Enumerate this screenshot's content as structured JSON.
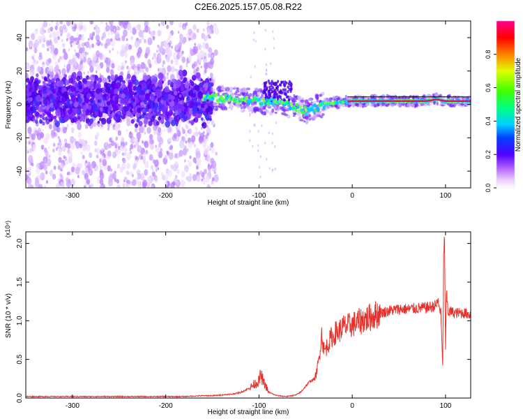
{
  "title": "C2E6.2025.157.05.08.R22",
  "colors": {
    "snr_line": "#e8302a",
    "ridge": "#ff0066",
    "background": "#ffffff",
    "axis": "#000000"
  },
  "chart_data": [
    {
      "type": "heatmap",
      "name": "spectrogram",
      "title": "C2E6.2025.157.05.08.R22",
      "xlabel": "Height of straight line (km)",
      "ylabel": "Frequency (Hz)",
      "xlim": [
        -350,
        127
      ],
      "ylim": [
        -50,
        50
      ],
      "xticks": [
        -300,
        -200,
        -100,
        0,
        100
      ],
      "yticks": [
        -40,
        -20,
        0,
        20,
        40
      ],
      "xtick_labels": [
        "-300",
        "-200",
        "-100",
        "0",
        "100"
      ],
      "ytick_labels": [
        "-40",
        "-20",
        "0",
        "20",
        "40"
      ],
      "ridge": {
        "height_km": [
          -160,
          -150,
          -140,
          -130,
          -120,
          -110,
          -100,
          -90,
          -80,
          -70,
          -60,
          -55,
          -50,
          -45,
          -40,
          -30,
          -20,
          -10,
          0,
          20,
          40,
          60,
          80,
          90,
          100,
          110,
          127
        ],
        "frequency_hz": [
          4,
          4,
          3.5,
          3,
          3,
          2.5,
          2,
          1,
          2,
          0,
          -2,
          -3,
          -4,
          -3,
          -2,
          0,
          1,
          1.5,
          2,
          2,
          2,
          2,
          2,
          3,
          2,
          2,
          2
        ]
      },
      "colorbar": {
        "label": "Normalized spectral amplitude",
        "range": [
          0,
          1
        ],
        "ticks": [
          0.0,
          0.2,
          0.4,
          0.6,
          0.8
        ],
        "tick_labels": [
          "0.0",
          "0.2",
          "0.4",
          "0.6",
          "0.8"
        ],
        "colormap": "rainbow"
      }
    },
    {
      "type": "line",
      "name": "snr",
      "xlabel": "Height of straight line (km)",
      "ylabel": "SNR (10 * v/v)",
      "y_multiplier": "(x10⁴)",
      "xlim": [
        -350,
        127
      ],
      "ylim": [
        0,
        2.15
      ],
      "xticks": [
        -300,
        -200,
        -100,
        0,
        100
      ],
      "yticks": [
        0.0,
        0.5,
        1.0,
        1.5,
        2.0
      ],
      "xtick_labels": [
        "-300",
        "-200",
        "-100",
        "0",
        "100"
      ],
      "ytick_labels": [
        "0.0",
        "0.5",
        "1.0",
        "1.5",
        "2.0"
      ],
      "series": [
        {
          "x": [
            -350,
            -300,
            -250,
            -200,
            -180,
            -160,
            -150,
            -140,
            -130,
            -120,
            -115,
            -110,
            -105,
            -100,
            -98,
            -95,
            -92,
            -90,
            -85,
            -80,
            -70,
            -60,
            -55,
            -50,
            -45,
            -40,
            -38,
            -35,
            -33,
            -30,
            -28,
            -25,
            -22,
            -20,
            -18,
            -15,
            -10,
            -5,
            0,
            10,
            20,
            30,
            40,
            50,
            60,
            70,
            80,
            85,
            90,
            92,
            95,
            97,
            98,
            99,
            100,
            101,
            103,
            105,
            110,
            120,
            127
          ],
          "y": [
            0.02,
            0.02,
            0.02,
            0.02,
            0.02,
            0.03,
            0.03,
            0.04,
            0.05,
            0.07,
            0.1,
            0.13,
            0.18,
            0.22,
            0.3,
            0.2,
            0.14,
            0.08,
            0.05,
            0.03,
            0.02,
            0.04,
            0.08,
            0.15,
            0.22,
            0.25,
            0.35,
            0.55,
            0.85,
            0.6,
            0.65,
            0.72,
            0.8,
            0.78,
            0.85,
            0.85,
            0.92,
            0.93,
            0.95,
            1.0,
            1.05,
            1.1,
            1.13,
            1.15,
            1.15,
            1.16,
            1.17,
            1.18,
            1.2,
            1.25,
            1.1,
            0.4,
            1.8,
            2.12,
            0.6,
            1.35,
            1.1,
            1.12,
            1.1,
            1.1,
            1.08
          ]
        }
      ]
    }
  ]
}
